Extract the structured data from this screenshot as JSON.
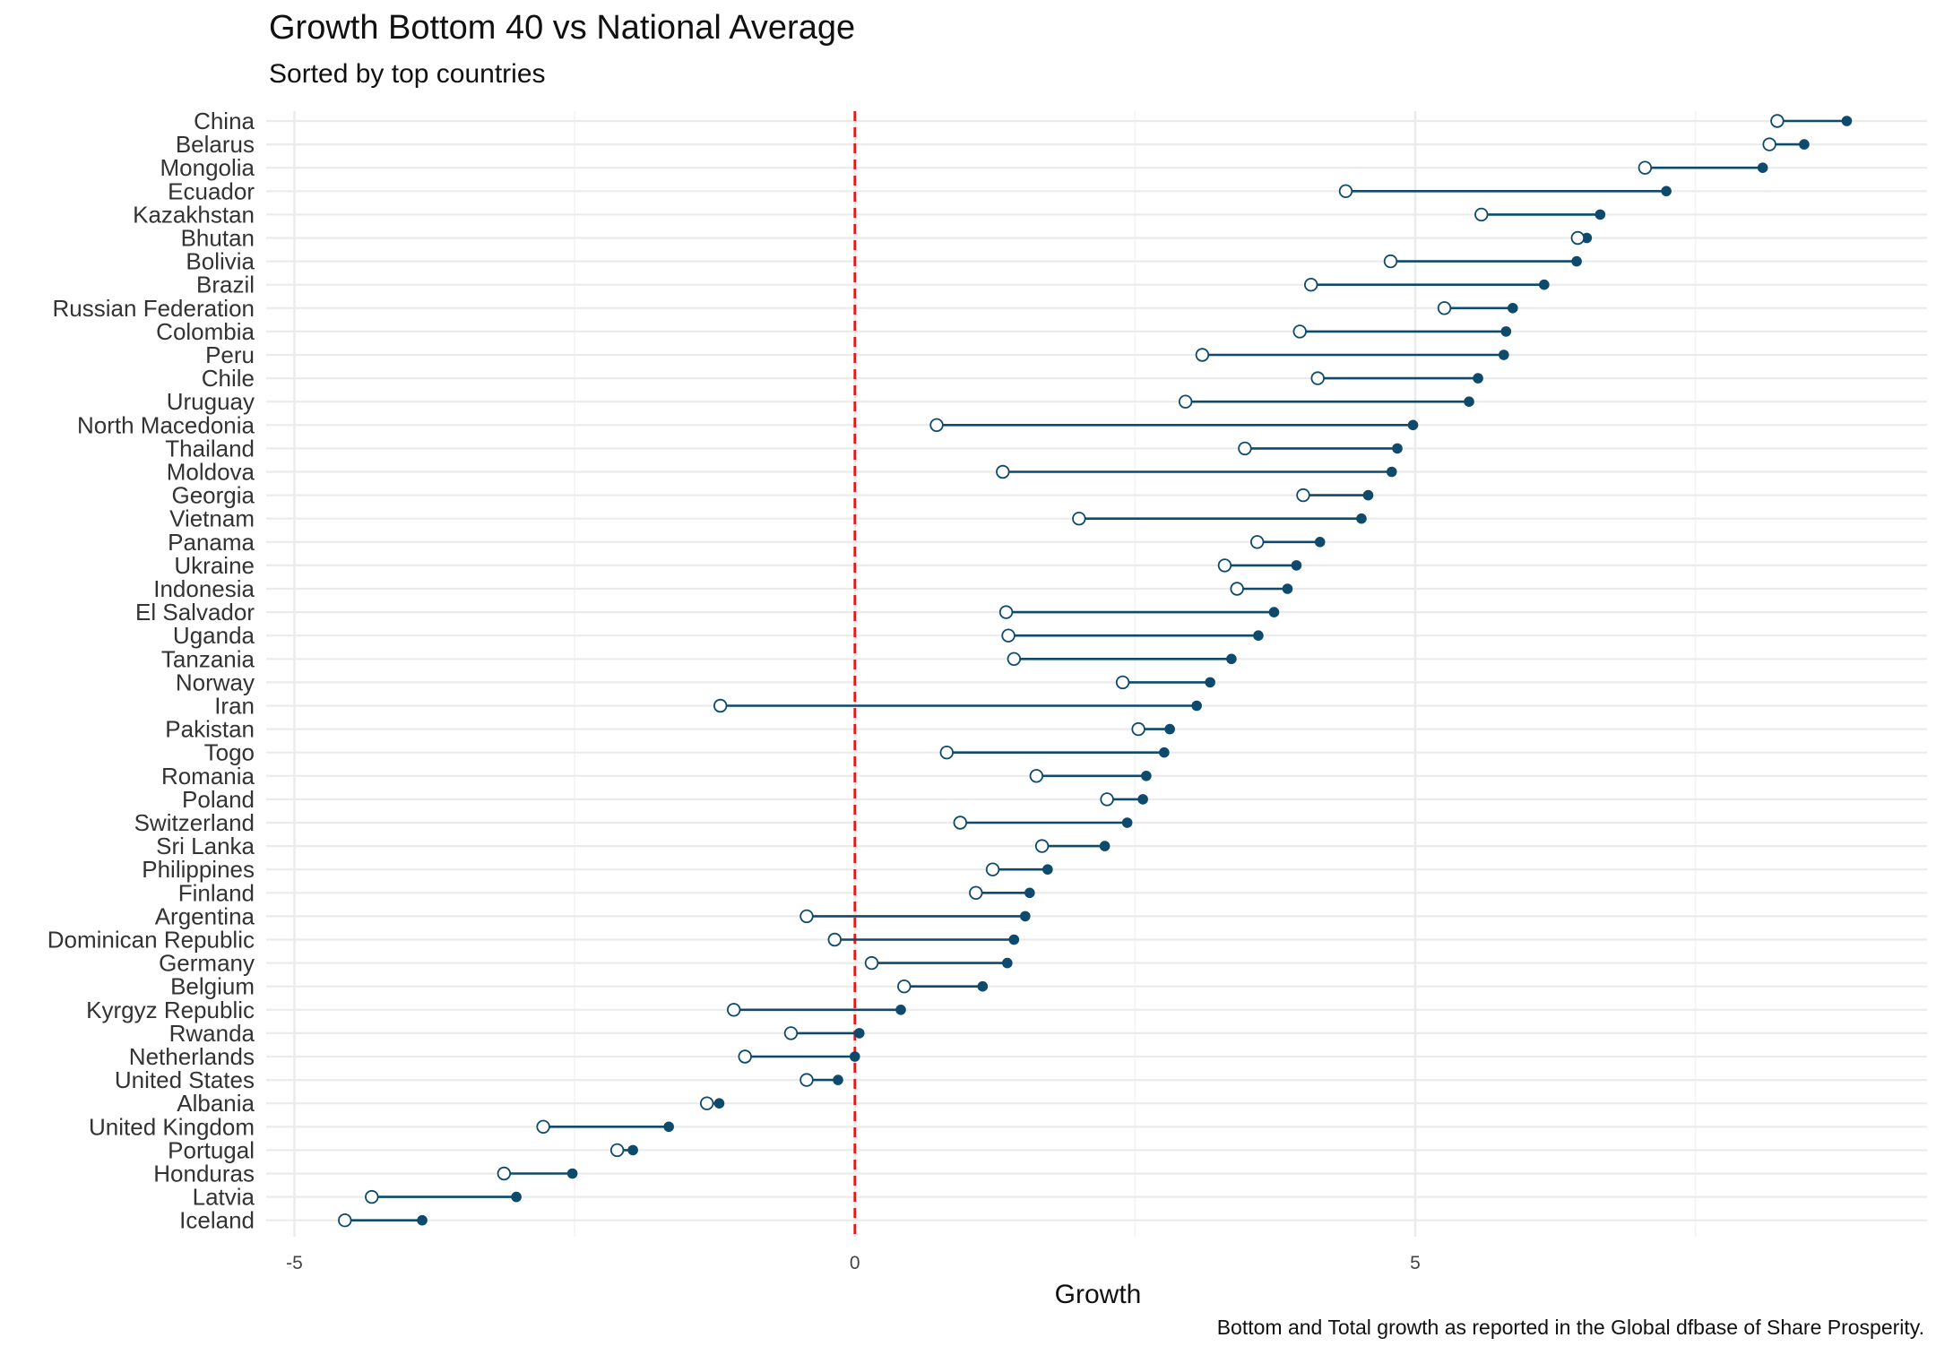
{
  "chart_data": {
    "type": "dumbbell",
    "title": "Growth Bottom 40 vs National Average",
    "subtitle": "Sorted by top countries",
    "xlabel": "Growth",
    "ylabel": "",
    "caption": "Bottom and Total growth as reported in the Global dfbase of Share Prosperity.",
    "xlim": [
      -5.2,
      9.3
    ],
    "xticks": [
      -5,
      0,
      5
    ],
    "grid": true,
    "reference_line": {
      "x": 0,
      "color": "#e31a1c",
      "style": "dashed"
    },
    "colors": {
      "segment": "#0d4a6b",
      "total_point": "#0d4a6b",
      "bottom_point_fill": "#ffffff",
      "bottom_point_stroke": "#0d4a6b",
      "grid_major": "#ebebeb",
      "grid_minor": "#f3f3f3"
    },
    "series_keys": [
      "bottom40",
      "total"
    ],
    "categories": [
      "China",
      "Belarus",
      "Mongolia",
      "Ecuador",
      "Kazakhstan",
      "Bhutan",
      "Bolivia",
      "Brazil",
      "Russian Federation",
      "Colombia",
      "Peru",
      "Chile",
      "Uruguay",
      "North Macedonia",
      "Thailand",
      "Moldova",
      "Georgia",
      "Vietnam",
      "Panama",
      "Ukraine",
      "Indonesia",
      "El Salvador",
      "Uganda",
      "Tanzania",
      "Norway",
      "Iran",
      "Pakistan",
      "Togo",
      "Romania",
      "Poland",
      "Switzerland",
      "Sri Lanka",
      "Philippines",
      "Finland",
      "Argentina",
      "Dominican Republic",
      "Germany",
      "Belgium",
      "Kyrgyz Republic",
      "Rwanda",
      "Netherlands",
      "United States",
      "Albania",
      "United Kingdom",
      "Portugal",
      "Honduras",
      "Latvia",
      "Iceland"
    ],
    "bottom40": [
      8.23,
      8.16,
      7.05,
      4.38,
      5.59,
      6.45,
      4.78,
      4.07,
      5.26,
      3.97,
      3.1,
      4.13,
      2.95,
      0.73,
      3.48,
      1.32,
      4.0,
      2.0,
      3.59,
      3.3,
      3.41,
      1.35,
      1.37,
      1.42,
      2.39,
      -1.2,
      2.53,
      0.82,
      1.62,
      2.25,
      0.94,
      1.67,
      1.23,
      1.08,
      -0.43,
      -0.18,
      0.15,
      0.44,
      -1.08,
      -0.57,
      -0.98,
      -0.43,
      -1.32,
      -2.78,
      -2.12,
      -3.13,
      -4.31,
      -4.55
    ],
    "total": [
      8.85,
      8.47,
      8.1,
      7.24,
      6.65,
      6.53,
      6.44,
      6.15,
      5.87,
      5.81,
      5.79,
      5.56,
      5.48,
      4.98,
      4.84,
      4.79,
      4.58,
      4.52,
      4.15,
      3.94,
      3.86,
      3.74,
      3.6,
      3.36,
      3.17,
      3.05,
      2.81,
      2.76,
      2.6,
      2.57,
      2.43,
      2.23,
      1.72,
      1.56,
      1.52,
      1.42,
      1.36,
      1.14,
      0.41,
      0.04,
      0.0,
      -0.15,
      -1.21,
      -1.66,
      -1.98,
      -2.52,
      -3.02,
      -3.86
    ]
  }
}
